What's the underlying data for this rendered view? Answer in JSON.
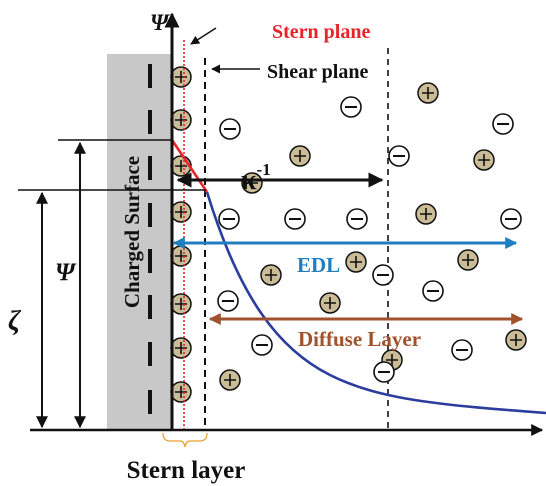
{
  "labels": {
    "psi_axis": "Ψ",
    "stern_plane": "Stern plane",
    "shear_plane": "Shear plane",
    "charged_surface": "Charged Surface",
    "kappa_base": "κ",
    "kappa_exp": "-1",
    "edl": "EDL",
    "diffuse_layer": "Diffuse Layer",
    "psi_dim": "Ψ",
    "zeta_dim": "ζ",
    "stern_layer": "Stern layer"
  },
  "symbols": {
    "positive": "+",
    "negative": "−"
  },
  "colors": {
    "stern_plane": "#e8232a",
    "potential_curve": "#2b3e9e",
    "edl": "#1f7ec0",
    "diffuse_layer": "#a0522d",
    "surface": "#c8c8c8",
    "cation_fill": "#c9bc96"
  }
}
